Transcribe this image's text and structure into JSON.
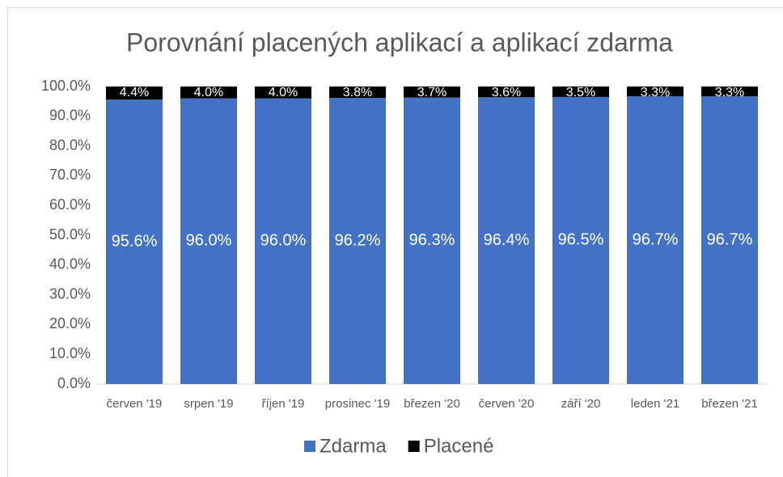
{
  "chart_data": {
    "type": "stacked_bar",
    "title": "Porovnání placených aplikací a aplikací zdarma",
    "categories": [
      "červen '19",
      "srpen '19",
      "říjen '19",
      "prosinec '19",
      "březen '20",
      "červen '20",
      "září '20",
      "leden '21",
      "březen '21"
    ],
    "series": [
      {
        "name": "Zdarma",
        "color": "#4472c4",
        "values": [
          95.6,
          96.0,
          96.0,
          96.2,
          96.3,
          96.4,
          96.5,
          96.7,
          96.7
        ],
        "value_labels": [
          "95.6%",
          "96.0%",
          "96.0%",
          "96.2%",
          "96.3%",
          "96.4%",
          "96.5%",
          "96.7%",
          "96.7%"
        ]
      },
      {
        "name": "Placené",
        "color": "#000000",
        "values": [
          4.4,
          4.0,
          4.0,
          3.8,
          3.7,
          3.6,
          3.5,
          3.3,
          3.3
        ],
        "value_labels": [
          "4.4%",
          "4.0%",
          "4.0%",
          "3.8%",
          "3.7%",
          "3.6%",
          "3.5%",
          "3.3%",
          "3.3%"
        ]
      }
    ],
    "ylim": [
      0,
      100
    ],
    "yticks": [
      {
        "value": 0,
        "label": "0.0%"
      },
      {
        "value": 10,
        "label": "10.0%"
      },
      {
        "value": 20,
        "label": "20.0%"
      },
      {
        "value": 30,
        "label": "30.0%"
      },
      {
        "value": 40,
        "label": "40.0%"
      },
      {
        "value": 50,
        "label": "50.0%"
      },
      {
        "value": 60,
        "label": "60.0%"
      },
      {
        "value": 70,
        "label": "70.0%"
      },
      {
        "value": 80,
        "label": "80.0%"
      },
      {
        "value": 90,
        "label": "90.0%"
      },
      {
        "value": 100,
        "label": "100.0%"
      }
    ],
    "legend": "bottom"
  }
}
